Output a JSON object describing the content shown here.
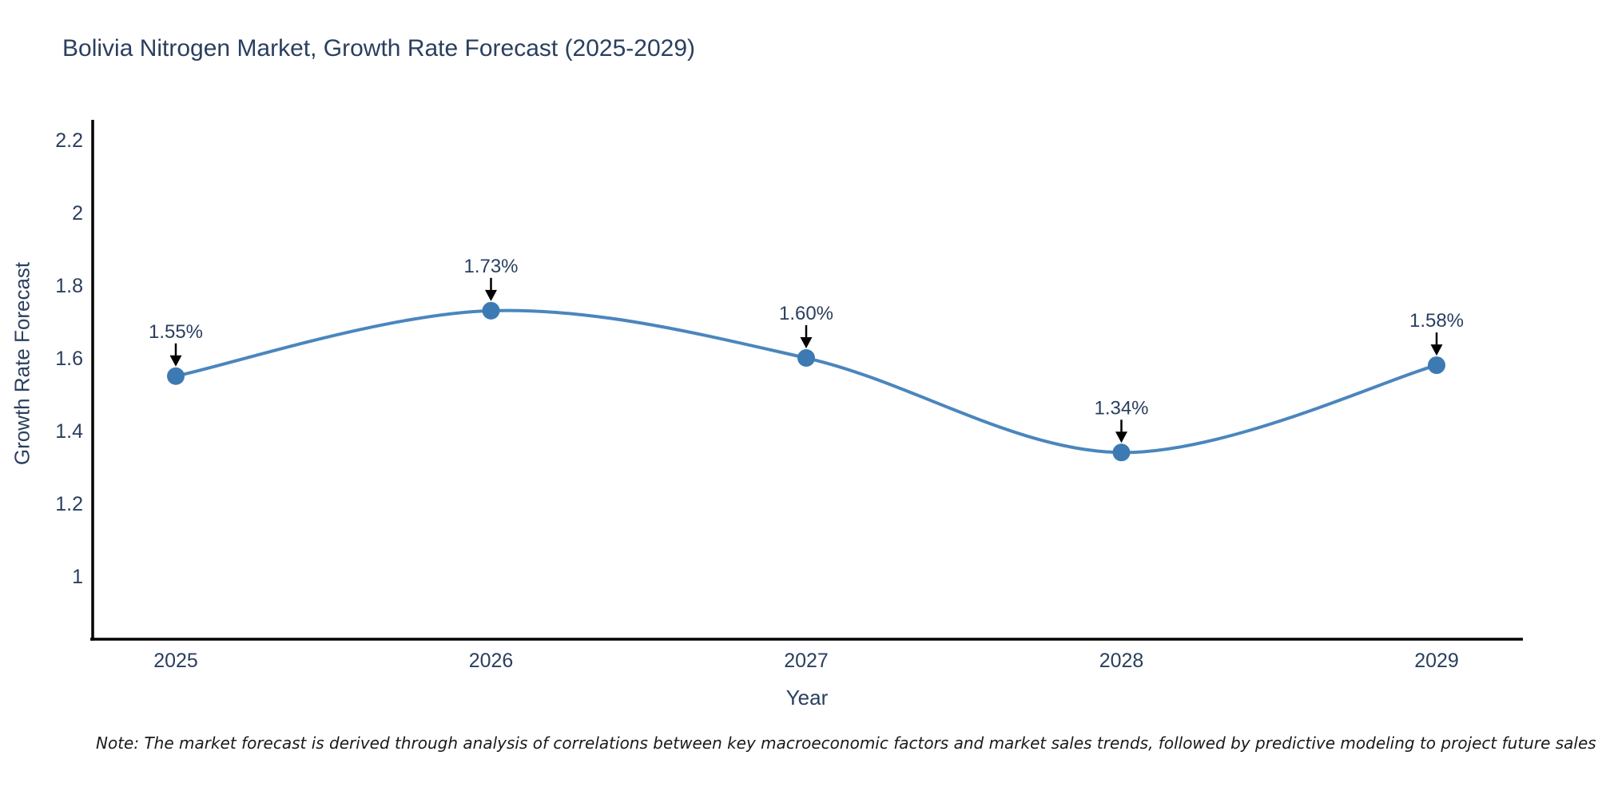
{
  "note": "Note: The market forecast is derived through analysis of correlations between key macroeconomic factors and market sales trends, followed by predictive modeling to project future sales",
  "chart_data": {
    "type": "line",
    "title": "Bolivia Nitrogen Market, Growth Rate Forecast (2025-2029)",
    "xlabel": "Year",
    "ylabel": "Growth Rate Forecast",
    "categories": [
      "2025",
      "2026",
      "2027",
      "2028",
      "2029"
    ],
    "values": [
      1.55,
      1.73,
      1.6,
      1.34,
      1.58
    ],
    "point_labels": [
      "1.55%",
      "1.73%",
      "1.60%",
      "1.34%",
      "1.58%"
    ],
    "y_ticks": [
      {
        "value": 1,
        "label": "1"
      },
      {
        "value": 1.2,
        "label": "1.2"
      },
      {
        "value": 1.4,
        "label": "1.4"
      },
      {
        "value": 1.6,
        "label": "1.6"
      },
      {
        "value": 1.8,
        "label": "1.8"
      },
      {
        "value": 2,
        "label": "2"
      },
      {
        "value": 2.2,
        "label": "2.2"
      }
    ],
    "ylim": [
      0.83,
      2.25
    ],
    "line_shape": "spline",
    "grid": false,
    "legend": "none",
    "annotations_have_arrows": true,
    "colors": {
      "line": "#4a86bd",
      "marker": "#3d7ab3",
      "axis": "#000000",
      "tick_text": "#2a3f5f",
      "annotation_text": "#2a3f5f",
      "arrow": "#000000",
      "note_text": "#1a1a1a",
      "background": "#ffffff"
    }
  }
}
